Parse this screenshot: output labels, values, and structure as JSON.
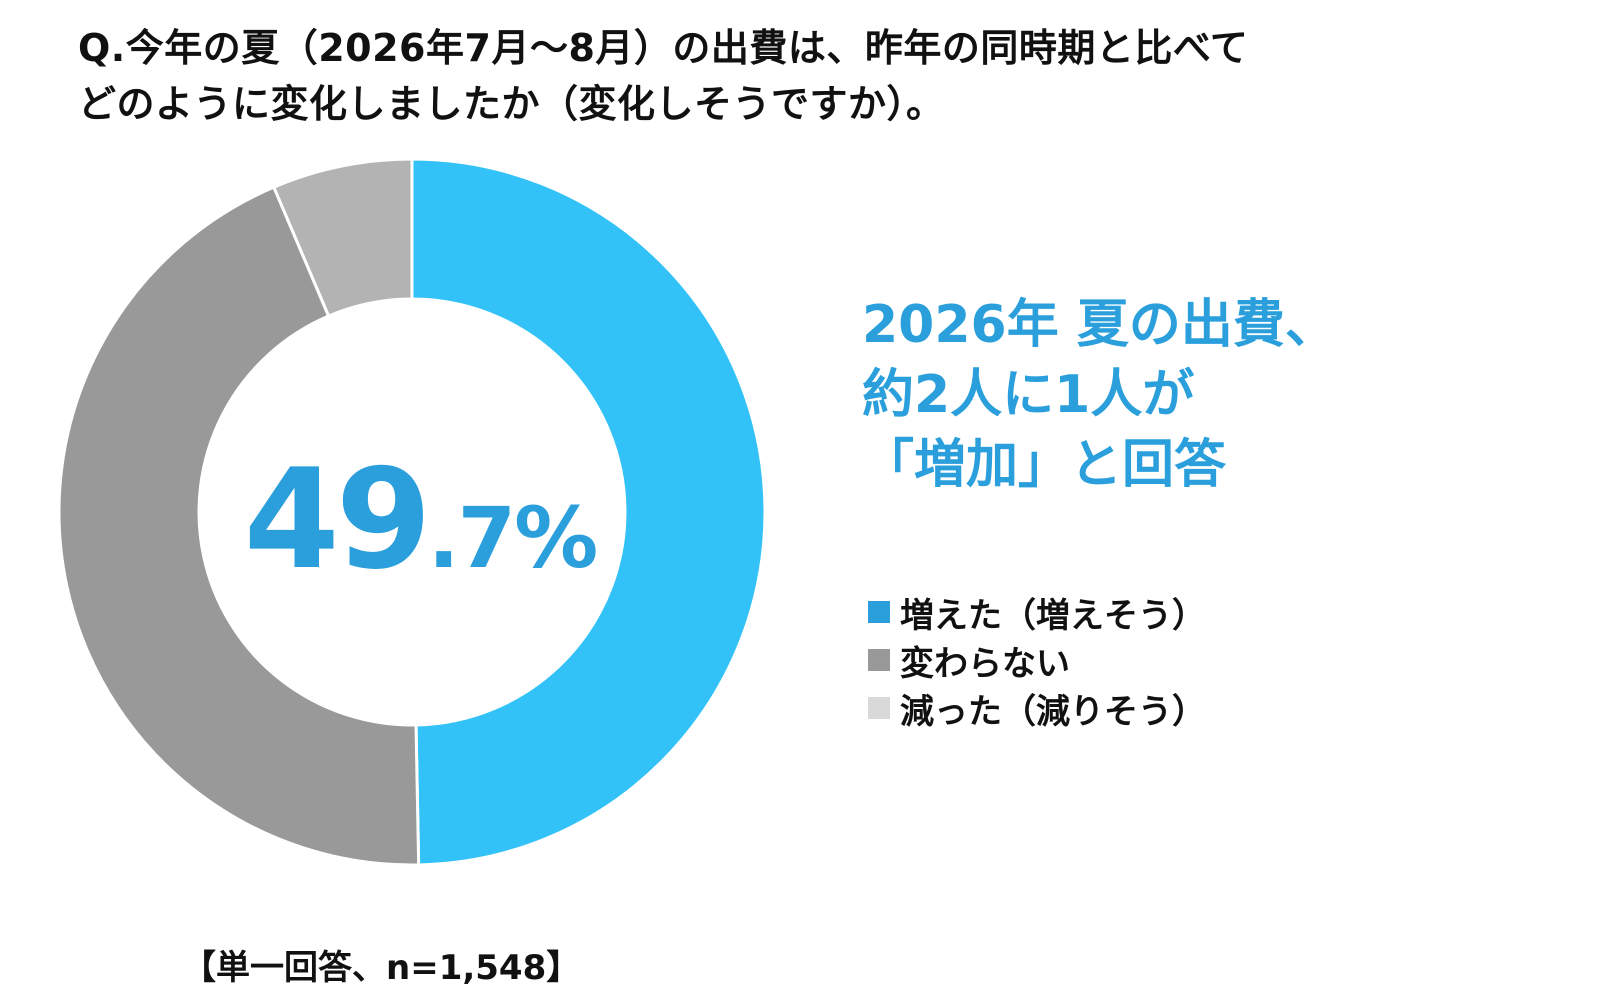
{
  "question": {
    "line1": "Q.今年の夏（2026年7月～8月）の出費は、昨年の同時期と比べて",
    "line2": "どのように変化しましたか（変化しそうですか）。"
  },
  "headline": {
    "line1": "2026年 夏の出費、",
    "line2": "約2人に1人が",
    "line3": "「増加」と回答"
  },
  "center_label": {
    "integer": "49",
    "decimal": ".7%"
  },
  "footnote": "【単一回答、n=1,548】",
  "colors": {
    "accent": "#2a9fdc",
    "increased": "#33c2f7",
    "unchanged": "#999999",
    "decreased": "#b3b3b3",
    "legend_decreased": "#d9d9d9"
  },
  "chart_data": {
    "type": "pie",
    "variant": "donut",
    "categories": [
      "増えた（増えそう）",
      "変わらない",
      "減った（減りそう）"
    ],
    "values": [
      49.7,
      43.9,
      6.4
    ],
    "unit": "%",
    "legend_position": "right"
  }
}
